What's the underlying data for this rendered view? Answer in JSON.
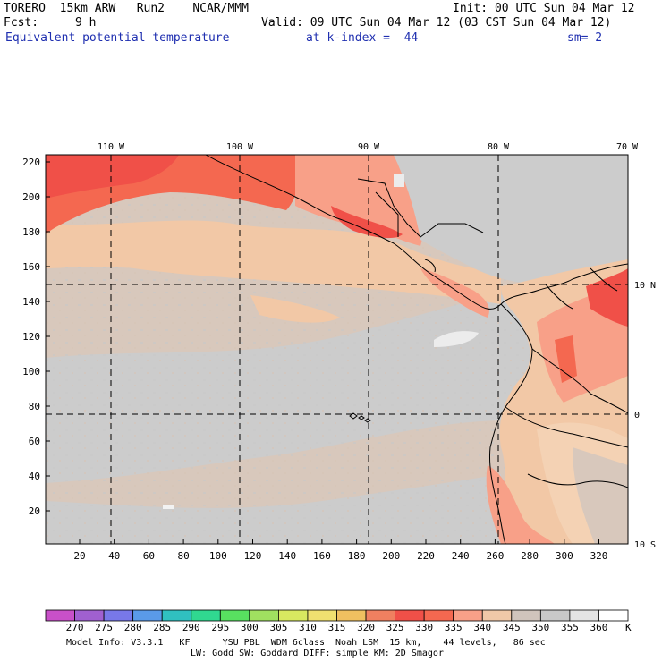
{
  "header": {
    "model": "TORERO  15km ARW   Run2    NCAR/MMM",
    "init": "Init: 00 UTC Sun 04 Mar 12",
    "fcst_label": "Fcst:",
    "fcst_value": "9 h",
    "valid": "Valid: 09 UTC Sun 04 Mar 12 (03 CST Sun 04 Mar 12)",
    "field": "Equivalent potential temperature",
    "level": "at k-index =  44",
    "smooth": "sm= 2"
  },
  "map": {
    "top_lon_labels": [
      "110 W",
      "100 W",
      "90 W",
      "80 W",
      "70 W"
    ],
    "right_lat_labels": [
      "10 N",
      "0",
      "10 S"
    ],
    "y_ticks": [
      "220",
      "200",
      "180",
      "160",
      "140",
      "120",
      "100",
      "80",
      "60",
      "40",
      "20"
    ],
    "x_ticks": [
      "20",
      "40",
      "60",
      "80",
      "100",
      "120",
      "140",
      "160",
      "180",
      "200",
      "220",
      "240",
      "260",
      "280",
      "300",
      "320"
    ]
  },
  "colorbar": {
    "levels": [
      "270",
      "275",
      "280",
      "285",
      "290",
      "295",
      "300",
      "305",
      "310",
      "315",
      "320",
      "325",
      "330",
      "335",
      "340",
      "345",
      "350",
      "355",
      "360"
    ],
    "unit": "K",
    "colors": [
      "#c850c8",
      "#a060d0",
      "#7878e8",
      "#5a9ae8",
      "#30c0c0",
      "#30d890",
      "#58e060",
      "#a0e060",
      "#d8e860",
      "#f0e070",
      "#f0c060",
      "#f08060",
      "#f05048",
      "#f46850",
      "#f8a088",
      "#f0c8a8",
      "#d0c4bc",
      "#c8c8c8",
      "#e4e4e4",
      "#ffffff"
    ]
  },
  "footer": {
    "line1": "Model Info: V3.3.1   KF      YSU PBL  WDM 6class  Noah LSM  15 km,    44 levels,   86 sec",
    "line2": "LW: Godd SW: Goddard DIFF: simple KM: 2D Smagor"
  }
}
